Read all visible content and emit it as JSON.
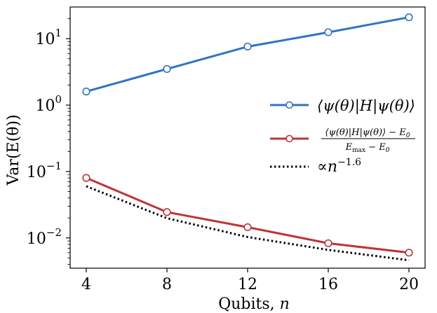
{
  "chart_data": {
    "type": "line",
    "title": "",
    "xlabel": "Qubits, ",
    "xlabel_var": "n",
    "ylabel": "Var(E(θ))",
    "yscale": "log",
    "xlim": [
      3.2,
      20.8
    ],
    "ylim": [
      0.0035,
      30
    ],
    "x_ticks": [
      4,
      8,
      12,
      16,
      20
    ],
    "y_ticks": [
      {
        "value": 0.01,
        "base": "10",
        "exp": "−2"
      },
      {
        "value": 0.1,
        "base": "10",
        "exp": "−1"
      },
      {
        "value": 1,
        "base": "10",
        "exp": "0"
      },
      {
        "value": 10,
        "base": "10",
        "exp": "1"
      }
    ],
    "grid": false,
    "legend_position": "right",
    "series": [
      {
        "name": "⟨ψ(θ)|H|ψ(θ)⟩",
        "color": "#3173c2",
        "style": "solid",
        "marker": "open-circle",
        "x": [
          4,
          8,
          12,
          16,
          20
        ],
        "values": [
          1.6,
          3.5,
          7.6,
          12.5,
          21.0
        ]
      },
      {
        "name_numerator": "⟨ψ(θ)|H|ψ(θ)⟩ − E",
        "name_numerator_sub": "0",
        "name_denominator": "E",
        "name_denominator_sub1": "max",
        "name_denominator_mid": " − E",
        "name_denominator_sub2": "0",
        "color": "#c03335",
        "style": "solid",
        "marker": "open-circle",
        "x": [
          4,
          8,
          12,
          16,
          20
        ],
        "values": [
          0.08,
          0.0245,
          0.0145,
          0.0083,
          0.006
        ]
      },
      {
        "name_prefix": "∝",
        "name_var": "n",
        "name_exp": "−1.6",
        "color": "#000000",
        "style": "dotted",
        "marker": "none",
        "x": [
          4,
          8,
          12,
          16,
          20
        ],
        "values": [
          0.06,
          0.0198,
          0.0103,
          0.0066,
          0.0046
        ]
      }
    ]
  }
}
